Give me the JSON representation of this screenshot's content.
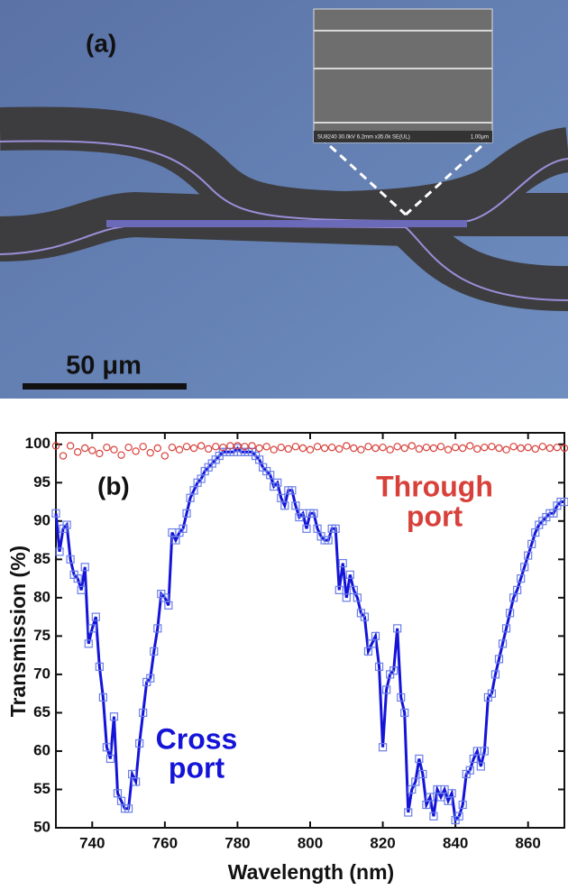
{
  "panel_a": {
    "label": "(a)",
    "scale_bar": "50 μm",
    "inset_caption": "SU8240 30.0kV 6.2mm x35.0k SE(UL)",
    "inset_scale": "1.00μm"
  },
  "chart_data": {
    "type": "line",
    "label": "(b)",
    "xlabel": "Wavelength (nm)",
    "ylabel": "Transmission (%)",
    "xlim": [
      730,
      870
    ],
    "xticks": [
      740,
      760,
      780,
      800,
      820,
      840,
      860
    ],
    "ylim": [
      50,
      101.5
    ],
    "yticks": [
      50,
      55,
      60,
      65,
      70,
      75,
      80,
      85,
      90,
      95,
      100
    ],
    "series": [
      {
        "label": [
          "Cross",
          "port"
        ],
        "color": "#1414d8",
        "marker": "square",
        "x": [
          730,
          731,
          732,
          733,
          734,
          735,
          736,
          737,
          738,
          739,
          740,
          741,
          742,
          743,
          744,
          745,
          746,
          747,
          748,
          749,
          750,
          751,
          752,
          753,
          754,
          755,
          756,
          757,
          758,
          759,
          760,
          761,
          762,
          763,
          764,
          765,
          766,
          767,
          768,
          769,
          770,
          771,
          772,
          773,
          774,
          775,
          776,
          777,
          778,
          779,
          780,
          781,
          782,
          783,
          784,
          785,
          786,
          787,
          788,
          789,
          790,
          791,
          792,
          793,
          794,
          795,
          796,
          797,
          798,
          799,
          800,
          801,
          802,
          803,
          804,
          805,
          806,
          807,
          808,
          809,
          810,
          811,
          812,
          813,
          814,
          815,
          816,
          817,
          818,
          819,
          820,
          821,
          822,
          823,
          824,
          825,
          826,
          827,
          828,
          829,
          830,
          831,
          832,
          833,
          834,
          835,
          836,
          837,
          838,
          839,
          840,
          841,
          842,
          843,
          844,
          845,
          846,
          847,
          848,
          849,
          850,
          851,
          852,
          853,
          854,
          855,
          856,
          857,
          858,
          859,
          860,
          861,
          862,
          863,
          864,
          865,
          866,
          867,
          868,
          869,
          870
        ],
        "values": [
          91,
          86,
          89,
          89.5,
          85,
          83,
          82.5,
          81,
          84,
          74,
          76,
          77.5,
          71,
          67,
          60.5,
          59,
          64.5,
          54.5,
          53.5,
          52.5,
          52.5,
          57,
          56,
          61,
          65,
          69,
          69.5,
          73,
          76,
          80.5,
          80,
          79,
          88.5,
          87.5,
          88.5,
          89,
          91,
          93,
          94,
          95,
          95.5,
          96.5,
          97,
          97.5,
          98,
          98.5,
          99,
          99,
          99,
          99,
          99.5,
          99,
          99,
          99,
          99,
          98.5,
          98,
          97,
          96.5,
          96,
          94.5,
          95,
          93,
          92,
          94,
          94,
          92,
          90.5,
          91,
          89,
          91,
          91,
          89,
          88,
          87.5,
          87.5,
          89,
          89,
          81,
          84.5,
          80,
          83,
          81,
          80,
          78,
          77.5,
          73,
          74,
          75,
          71,
          60.5,
          68,
          70,
          70.5,
          76,
          67,
          65,
          52,
          55,
          56,
          59,
          57,
          53,
          54,
          51.5,
          55,
          54,
          55,
          53.5,
          54.5,
          51,
          51.5,
          53,
          57,
          57.5,
          59,
          60,
          58,
          60,
          67,
          67.5,
          70,
          72,
          74,
          76,
          78,
          80,
          81,
          82.5,
          84,
          85.5,
          87,
          88.5,
          89.5,
          90,
          90.5,
          91,
          91,
          92,
          92.5,
          92.5
        ]
      },
      {
        "label": [
          "Through",
          "port"
        ],
        "color": "#d8403a",
        "marker": "circle",
        "x": [
          730,
          732,
          734,
          736,
          738,
          740,
          742,
          744,
          746,
          748,
          750,
          752,
          754,
          756,
          758,
          760,
          762,
          764,
          766,
          768,
          770,
          772,
          774,
          776,
          778,
          780,
          782,
          784,
          786,
          788,
          790,
          792,
          794,
          796,
          798,
          800,
          802,
          804,
          806,
          808,
          810,
          812,
          814,
          816,
          818,
          820,
          822,
          824,
          826,
          828,
          830,
          832,
          834,
          836,
          838,
          840,
          842,
          844,
          846,
          848,
          850,
          852,
          854,
          856,
          858,
          860,
          862,
          864,
          866,
          868,
          870
        ],
        "values": [
          99.8,
          98.5,
          99.8,
          99,
          99.5,
          99.2,
          98.8,
          99.6,
          99.3,
          98.6,
          99.6,
          99.1,
          99.7,
          98.9,
          99.5,
          98.5,
          99.6,
          99.3,
          99.7,
          99.5,
          99.8,
          99.4,
          99.7,
          99.6,
          99.8,
          99.8,
          99.7,
          99.8,
          99.5,
          99.7,
          99.3,
          99.6,
          99.4,
          99.7,
          99.5,
          99.3,
          99.7,
          99.5,
          99.6,
          99.4,
          99.8,
          99.5,
          99.3,
          99.7,
          99.5,
          99.6,
          99.3,
          99.7,
          99.5,
          99.8,
          99.4,
          99.6,
          99.5,
          99.7,
          99.3,
          99.6,
          99.5,
          99.8,
          99.4,
          99.6,
          99.7,
          99.5,
          99.3,
          99.7,
          99.5,
          99.6,
          99.4,
          99.7,
          99.5,
          99.6,
          99.5
        ]
      }
    ]
  }
}
